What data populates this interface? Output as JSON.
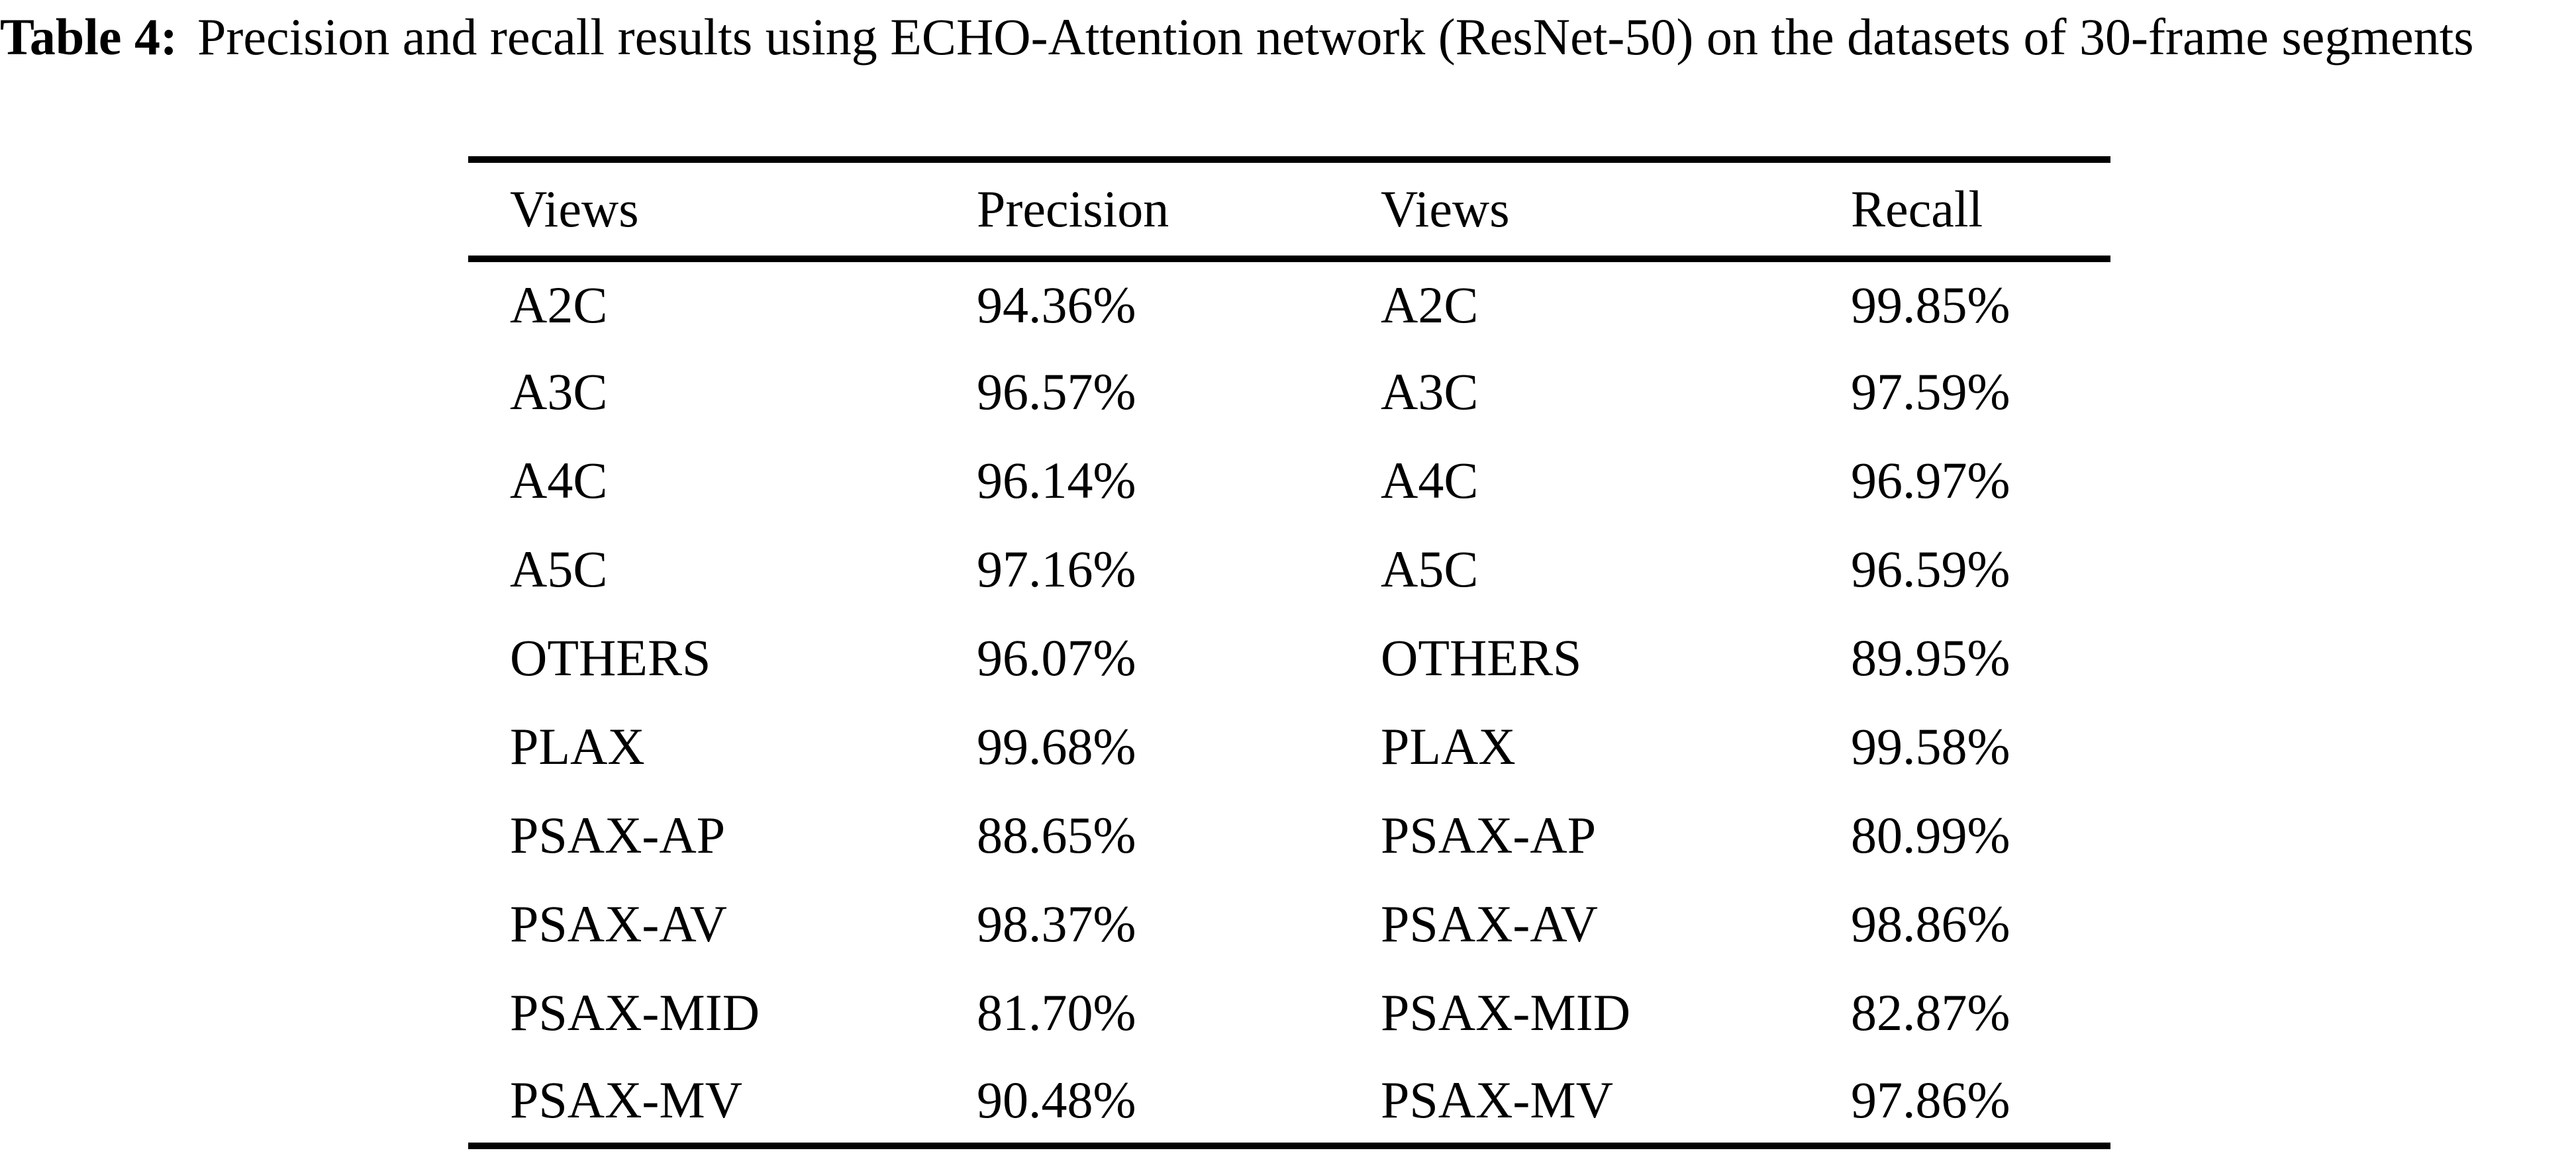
{
  "caption": {
    "label": "Table 4:",
    "text": "Precision and recall results using ECHO-Attention network (ResNet-50) on the datasets of 30-frame segments"
  },
  "table": {
    "headers": [
      "Views",
      "Precision",
      "Views",
      "Recall"
    ],
    "rows": [
      {
        "view_p": "A2C",
        "precision": "94.36%",
        "view_r": "A2C",
        "recall": "99.85%"
      },
      {
        "view_p": "A3C",
        "precision": "96.57%",
        "view_r": "A3C",
        "recall": "97.59%"
      },
      {
        "view_p": "A4C",
        "precision": "96.14%",
        "view_r": "A4C",
        "recall": "96.97%"
      },
      {
        "view_p": "A5C",
        "precision": "97.16%",
        "view_r": "A5C",
        "recall": "96.59%"
      },
      {
        "view_p": "OTHERS",
        "precision": "96.07%",
        "view_r": "OTHERS",
        "recall": "89.95%"
      },
      {
        "view_p": "PLAX",
        "precision": "99.68%",
        "view_r": "PLAX",
        "recall": "99.58%"
      },
      {
        "view_p": "PSAX-AP",
        "precision": "88.65%",
        "view_r": "PSAX-AP",
        "recall": "80.99%"
      },
      {
        "view_p": "PSAX-AV",
        "precision": "98.37%",
        "view_r": "PSAX-AV",
        "recall": "98.86%"
      },
      {
        "view_p": "PSAX-MID",
        "precision": "81.70%",
        "view_r": "PSAX-MID",
        "recall": "82.87%"
      },
      {
        "view_p": "PSAX-MV",
        "precision": "90.48%",
        "view_r": "PSAX-MV",
        "recall": "97.86%"
      }
    ]
  },
  "colors": {
    "text": "#000000",
    "background": "#ffffff",
    "rule": "#000000"
  }
}
